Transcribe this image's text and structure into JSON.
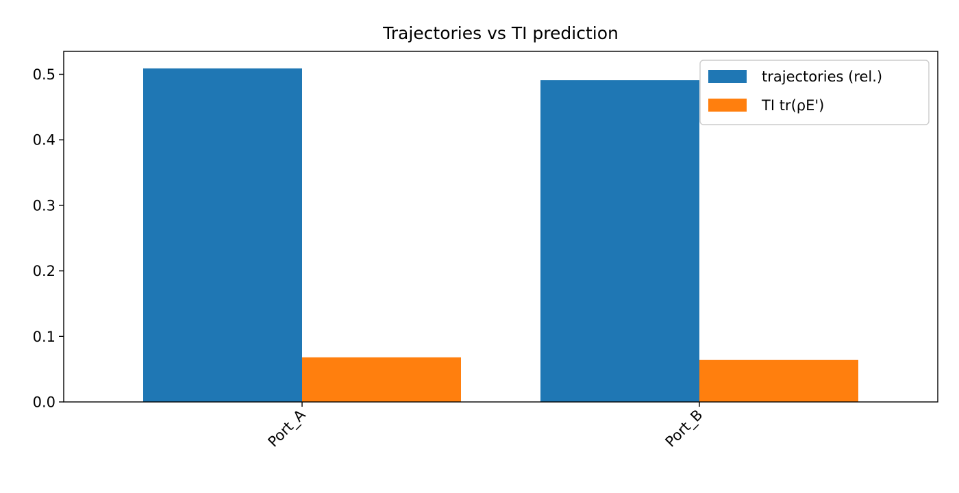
{
  "chart_data": {
    "type": "bar",
    "title": "Trajectories vs TI prediction",
    "xlabel": "",
    "ylabel": "",
    "categories": [
      "Port_A",
      "Port_B"
    ],
    "series": [
      {
        "name": "trajectories (rel.)",
        "values": [
          0.509,
          0.491
        ]
      },
      {
        "name": "TI tr(ρE')",
        "values": [
          0.068,
          0.064
        ]
      }
    ],
    "ylim": [
      0,
      0.535
    ],
    "yticks": [
      "0.0",
      "0.1",
      "0.2",
      "0.3",
      "0.4",
      "0.5"
    ],
    "grid": false,
    "legend_position": "top-right",
    "colors": [
      "#1f77b4",
      "#ff7f0e"
    ]
  }
}
